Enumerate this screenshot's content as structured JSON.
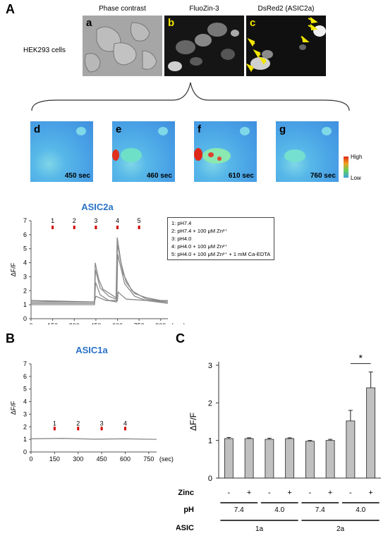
{
  "panelA": {
    "letter": "A",
    "cell_label": "HEK293 cells",
    "images": [
      {
        "letter": "a",
        "caption": "Phase contrast"
      },
      {
        "letter": "b",
        "caption": "FluoZin-3"
      },
      {
        "letter": "c",
        "caption": "DsRed2 (ASIC2a)"
      }
    ],
    "heatmaps": [
      {
        "letter": "d",
        "time": "450 sec"
      },
      {
        "letter": "e",
        "time": "460 sec"
      },
      {
        "letter": "f",
        "time": "610 sec"
      },
      {
        "letter": "g",
        "time": "760 sec"
      }
    ],
    "colorbar": {
      "high": "High",
      "low": "Low"
    }
  },
  "legend": [
    "1: pH7.4",
    "2: pH7.4 + 100 μM Zn²⁺",
    "3: pH4.0",
    "4: pH4.0 + 100 μM Zn²⁺",
    "5: pH4.0 + 100 μM Zn²⁺ + 1 mM Ca-EDTA"
  ],
  "panelB_letter": "B",
  "panelC_letter": "C",
  "chart_data": [
    {
      "type": "line",
      "title": "ASIC2a",
      "ylabel": "ΔF/F",
      "xlabel": "",
      "x_unit": "(sec)",
      "xlim": [
        0,
        950
      ],
      "ylim": [
        0,
        7
      ],
      "xticks": [
        0,
        150,
        300,
        450,
        600,
        750,
        900
      ],
      "yticks": [
        0,
        1,
        2,
        3,
        4,
        5,
        6,
        7
      ],
      "markers": [
        {
          "label": "1",
          "x": 150
        },
        {
          "label": "2",
          "x": 300
        },
        {
          "label": "3",
          "x": 450
        },
        {
          "label": "4",
          "x": 600
        },
        {
          "label": "5",
          "x": 750
        }
      ],
      "series": [
        {
          "values": [
            [
              0,
              1.2
            ],
            [
              440,
              1.2
            ],
            [
              445,
              4.0
            ],
            [
              470,
              2.8
            ],
            [
              500,
              2.1
            ],
            [
              560,
              1.7
            ],
            [
              590,
              1.5
            ],
            [
              598,
              5.8
            ],
            [
              625,
              4.0
            ],
            [
              660,
              2.6
            ],
            [
              720,
              1.8
            ],
            [
              800,
              1.5
            ],
            [
              900,
              1.3
            ],
            [
              950,
              1.3
            ]
          ]
        },
        {
          "values": [
            [
              0,
              1.1
            ],
            [
              440,
              1.1
            ],
            [
              447,
              3.5
            ],
            [
              480,
              2.2
            ],
            [
              540,
              1.6
            ],
            [
              590,
              1.4
            ],
            [
              600,
              5.3
            ],
            [
              640,
              3.2
            ],
            [
              700,
              2.0
            ],
            [
              800,
              1.4
            ],
            [
              950,
              1.2
            ]
          ]
        },
        {
          "values": [
            [
              0,
              1.0
            ],
            [
              440,
              1.0
            ],
            [
              448,
              2.6
            ],
            [
              480,
              1.7
            ],
            [
              540,
              1.3
            ],
            [
              595,
              1.2
            ],
            [
              602,
              4.6
            ],
            [
              650,
              2.5
            ],
            [
              720,
              1.6
            ],
            [
              800,
              1.3
            ],
            [
              950,
              1.1
            ]
          ]
        },
        {
          "values": [
            [
              0,
              1.3
            ],
            [
              440,
              1.2
            ],
            [
              450,
              1.6
            ],
            [
              520,
              1.3
            ],
            [
              600,
              1.3
            ],
            [
              605,
              1.9
            ],
            [
              660,
              1.4
            ],
            [
              950,
              1.2
            ]
          ]
        }
      ]
    },
    {
      "type": "line",
      "title": "ASIC1a",
      "ylabel": "ΔF/F",
      "xlabel": "",
      "x_unit": "(sec)",
      "xlim": [
        0,
        800
      ],
      "ylim": [
        0,
        7
      ],
      "xticks": [
        0,
        150,
        300,
        450,
        600,
        750
      ],
      "yticks": [
        0,
        1,
        2,
        3,
        4,
        5,
        6,
        7
      ],
      "markers": [
        {
          "label": "1",
          "x": 150
        },
        {
          "label": "2",
          "x": 300
        },
        {
          "label": "3",
          "x": 450
        },
        {
          "label": "4",
          "x": 600
        }
      ],
      "series": [
        {
          "values": [
            [
              0,
              1.05
            ],
            [
              200,
              1.08
            ],
            [
              400,
              1.02
            ],
            [
              600,
              1.05
            ],
            [
              800,
              1.0
            ]
          ]
        }
      ]
    },
    {
      "type": "bar",
      "ylabel": "ΔF/F",
      "ylim": [
        0,
        3
      ],
      "yticks": [
        0,
        1,
        2,
        3
      ],
      "values": [
        1.05,
        1.05,
        1.03,
        1.05,
        0.98,
        1.0,
        1.52,
        2.4
      ],
      "errors": [
        0.03,
        0.02,
        0.03,
        0.02,
        0.02,
        0.03,
        0.28,
        0.42
      ],
      "zinc": [
        "-",
        "+",
        "-",
        "+",
        "-",
        "+",
        "-",
        "+"
      ],
      "row_labels": {
        "zinc": "Zinc",
        "ph": "pH",
        "asic": "ASIC"
      },
      "ph_groups": [
        "7.4",
        "4.0",
        "7.4",
        "4.0"
      ],
      "asic_groups": [
        "1a",
        "2a"
      ],
      "significance": "*"
    }
  ]
}
